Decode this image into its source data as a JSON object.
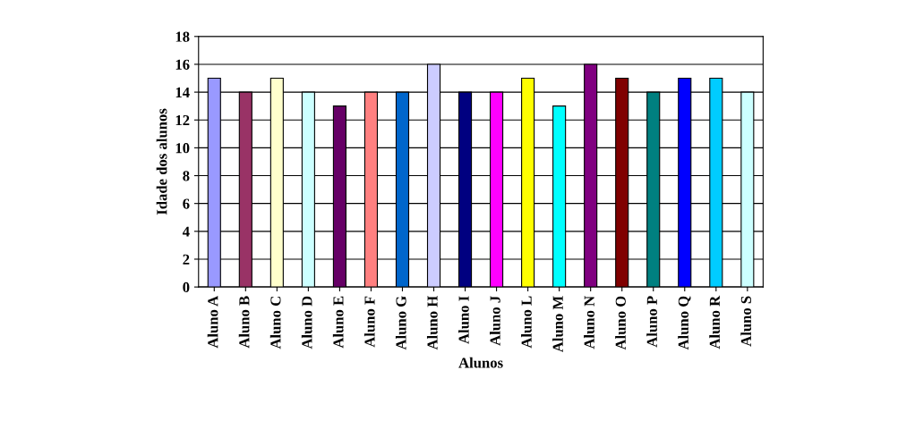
{
  "chart_data": {
    "type": "bar",
    "xlabel": "Alunos",
    "ylabel": "Idade dos alunos",
    "categories": [
      "Aluno A",
      "Aluno B",
      "Aluno C",
      "Aluno D",
      "Aluno E",
      "Aluno F",
      "Aluno G",
      "Aluno H",
      "Aluno I",
      "Aluno J",
      "Aluno L",
      "Aluno M",
      "Aluno N",
      "Aluno O",
      "Aluno P",
      "Aluno Q",
      "Aluno R",
      "Aluno S"
    ],
    "values": [
      15,
      14,
      15,
      14,
      13,
      14,
      14,
      16,
      14,
      14,
      15,
      13,
      16,
      15,
      14,
      15,
      15,
      14
    ],
    "colors": [
      "#9999ff",
      "#993366",
      "#ffffcc",
      "#ccffff",
      "#660066",
      "#ff8080",
      "#0066cc",
      "#ccccff",
      "#000080",
      "#ff00ff",
      "#ffff00",
      "#00ffff",
      "#800080",
      "#800000",
      "#008080",
      "#0000ff",
      "#00ccff",
      "#ccffff"
    ],
    "ylim": [
      0,
      18
    ],
    "yticks": [
      0,
      2,
      4,
      6,
      8,
      10,
      12,
      14,
      16,
      18
    ],
    "grid": "y"
  }
}
